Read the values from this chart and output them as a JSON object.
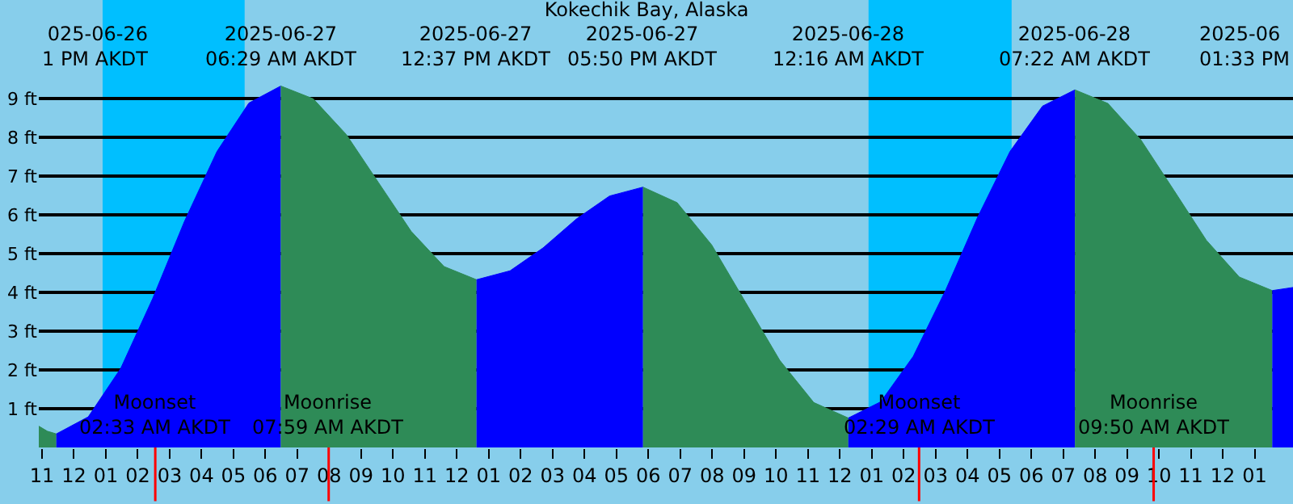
{
  "chart_data": {
    "type": "area",
    "title": "Kokechik Bay, Alaska",
    "xlim": [
      "2025-06-26T22:54",
      "2025-06-28T14:12"
    ],
    "xticks": [
      {
        "value": "2025-06-26T23:00",
        "label": "11"
      },
      {
        "value": "2025-06-27T00:00",
        "label": "12"
      },
      {
        "value": "2025-06-27T01:00",
        "label": "01"
      },
      {
        "value": "2025-06-27T02:00",
        "label": "02"
      },
      {
        "value": "2025-06-27T03:00",
        "label": "03"
      },
      {
        "value": "2025-06-27T04:00",
        "label": "04"
      },
      {
        "value": "2025-06-27T05:00",
        "label": "05"
      },
      {
        "value": "2025-06-27T06:00",
        "label": "06"
      },
      {
        "value": "2025-06-27T07:00",
        "label": "07"
      },
      {
        "value": "2025-06-27T08:00",
        "label": "08"
      },
      {
        "value": "2025-06-27T09:00",
        "label": "09"
      },
      {
        "value": "2025-06-27T10:00",
        "label": "10"
      },
      {
        "value": "2025-06-27T11:00",
        "label": "11"
      },
      {
        "value": "2025-06-27T12:00",
        "label": "12"
      },
      {
        "value": "2025-06-27T13:00",
        "label": "01"
      },
      {
        "value": "2025-06-27T14:00",
        "label": "02"
      },
      {
        "value": "2025-06-27T15:00",
        "label": "03"
      },
      {
        "value": "2025-06-27T16:00",
        "label": "04"
      },
      {
        "value": "2025-06-27T17:00",
        "label": "05"
      },
      {
        "value": "2025-06-27T18:00",
        "label": "06"
      },
      {
        "value": "2025-06-27T19:00",
        "label": "07"
      },
      {
        "value": "2025-06-27T20:00",
        "label": "08"
      },
      {
        "value": "2025-06-27T21:00",
        "label": "09"
      },
      {
        "value": "2025-06-27T22:00",
        "label": "10"
      },
      {
        "value": "2025-06-27T23:00",
        "label": "11"
      },
      {
        "value": "2025-06-28T00:00",
        "label": "12"
      },
      {
        "value": "2025-06-28T01:00",
        "label": "01"
      },
      {
        "value": "2025-06-28T02:00",
        "label": "02"
      },
      {
        "value": "2025-06-28T03:00",
        "label": "03"
      },
      {
        "value": "2025-06-28T04:00",
        "label": "04"
      },
      {
        "value": "2025-06-28T05:00",
        "label": "05"
      },
      {
        "value": "2025-06-28T06:00",
        "label": "06"
      },
      {
        "value": "2025-06-28T07:00",
        "label": "07"
      },
      {
        "value": "2025-06-28T08:00",
        "label": "08"
      },
      {
        "value": "2025-06-28T09:00",
        "label": "09"
      },
      {
        "value": "2025-06-28T10:00",
        "label": "10"
      },
      {
        "value": "2025-06-28T11:00",
        "label": "11"
      },
      {
        "value": "2025-06-28T12:00",
        "label": "12"
      },
      {
        "value": "2025-06-28T13:00",
        "label": "01"
      }
    ],
    "ylim": [
      0,
      11.55
    ],
    "yticks": [
      {
        "value": 1,
        "label": "1 ft"
      },
      {
        "value": 2,
        "label": "2 ft"
      },
      {
        "value": 3,
        "label": "3 ft"
      },
      {
        "value": 4,
        "label": "4 ft"
      },
      {
        "value": 5,
        "label": "5 ft"
      },
      {
        "value": 6,
        "label": "6 ft"
      },
      {
        "value": 7,
        "label": "7 ft"
      },
      {
        "value": 8,
        "label": "8 ft"
      },
      {
        "value": 9,
        "label": "9 ft"
      }
    ],
    "grid": "y",
    "series": [
      {
        "color": "#2e8b57",
        "x": [
          "2025-06-26T22:54",
          "2025-06-26T23:10",
          "2025-06-26T23:27"
        ],
        "values": [
          0.55,
          0.42,
          0.35
        ]
      },
      {
        "color": "#0000ff",
        "x": [
          "2025-06-26T23:27",
          "2025-06-27T00:27",
          "2025-06-27T01:28",
          "2025-06-27T02:28",
          "2025-06-27T03:28",
          "2025-06-27T04:29",
          "2025-06-27T05:29",
          "2025-06-27T06:29"
        ],
        "values": [
          0.35,
          0.79,
          2.04,
          3.84,
          5.84,
          7.64,
          8.89,
          9.33
        ]
      },
      {
        "color": "#2e8b57",
        "x": [
          "2025-06-27T06:29",
          "2025-06-27T07:30",
          "2025-06-27T08:32",
          "2025-06-27T09:33",
          "2025-06-27T10:34",
          "2025-06-27T11:36",
          "2025-06-27T12:37"
        ],
        "values": [
          9.33,
          9.0,
          8.08,
          6.83,
          5.58,
          4.67,
          4.33
        ]
      },
      {
        "color": "#0000ff",
        "x": [
          "2025-06-27T12:37",
          "2025-06-27T13:40",
          "2025-06-27T14:42",
          "2025-06-27T15:45",
          "2025-06-27T16:47",
          "2025-06-27T17:50"
        ],
        "values": [
          4.33,
          4.56,
          5.15,
          5.9,
          6.49,
          6.72
        ]
      },
      {
        "color": "#2e8b57",
        "x": [
          "2025-06-27T17:50",
          "2025-06-27T18:54",
          "2025-06-27T19:59",
          "2025-06-27T21:03",
          "2025-06-27T22:07",
          "2025-06-27T23:11",
          "2025-06-28T00:16"
        ],
        "values": [
          6.72,
          6.32,
          5.23,
          3.74,
          2.25,
          1.16,
          0.76
        ]
      },
      {
        "color": "#0000ff",
        "x": [
          "2025-06-28T00:16",
          "2025-06-28T01:17",
          "2025-06-28T02:18",
          "2025-06-28T03:19",
          "2025-06-28T04:19",
          "2025-06-28T05:20",
          "2025-06-28T06:21",
          "2025-06-28T07:22"
        ],
        "values": [
          0.76,
          1.18,
          2.35,
          4.06,
          5.94,
          7.64,
          8.81,
          9.23
        ]
      },
      {
        "color": "#2e8b57",
        "x": [
          "2025-06-28T07:22",
          "2025-06-28T08:24",
          "2025-06-28T09:26",
          "2025-06-28T10:28",
          "2025-06-28T11:29",
          "2025-06-28T12:31",
          "2025-06-28T13:33"
        ],
        "values": [
          9.23,
          8.88,
          7.94,
          6.64,
          5.35,
          4.4,
          4.05
        ]
      },
      {
        "color": "#0000ff",
        "x": [
          "2025-06-28T13:33",
          "2025-06-28T14:12"
        ],
        "values": [
          4.05,
          4.13
        ]
      }
    ],
    "bands": [
      {
        "axis": "x",
        "from": "2025-06-27T00:54",
        "to": "2025-06-27T05:21",
        "color": "#00bfff"
      },
      {
        "axis": "x",
        "from": "2025-06-28T00:54",
        "to": "2025-06-28T05:23",
        "color": "#00bfff"
      }
    ],
    "ref_lines": [
      {
        "axis": "x",
        "value": "2025-06-27T02:33",
        "label": "Moonset\n02:33 AM AKDT",
        "color": "#ff0000"
      },
      {
        "axis": "x",
        "value": "2025-06-27T07:59",
        "label": "Moonrise\n07:59 AM AKDT",
        "color": "#ff0000"
      },
      {
        "axis": "x",
        "value": "2025-06-28T02:29",
        "label": "Moonset\n02:29 AM AKDT",
        "color": "#ff0000"
      },
      {
        "axis": "x",
        "value": "2025-06-28T09:50",
        "label": "Moonrise\n09:50 AM AKDT",
        "color": "#ff0000"
      }
    ],
    "annotations": [
      "025-06-26\n1 PM AKDT",
      "2025-06-27\n06:29 AM AKDT",
      "2025-06-27\n12:37 PM AKDT",
      "2025-06-27\n05:50 PM AKDT",
      "2025-06-28\n12:16 AM AKDT",
      "2025-06-28\n07:22 AM AKDT",
      "2025-06\n01:33 PM"
    ]
  }
}
